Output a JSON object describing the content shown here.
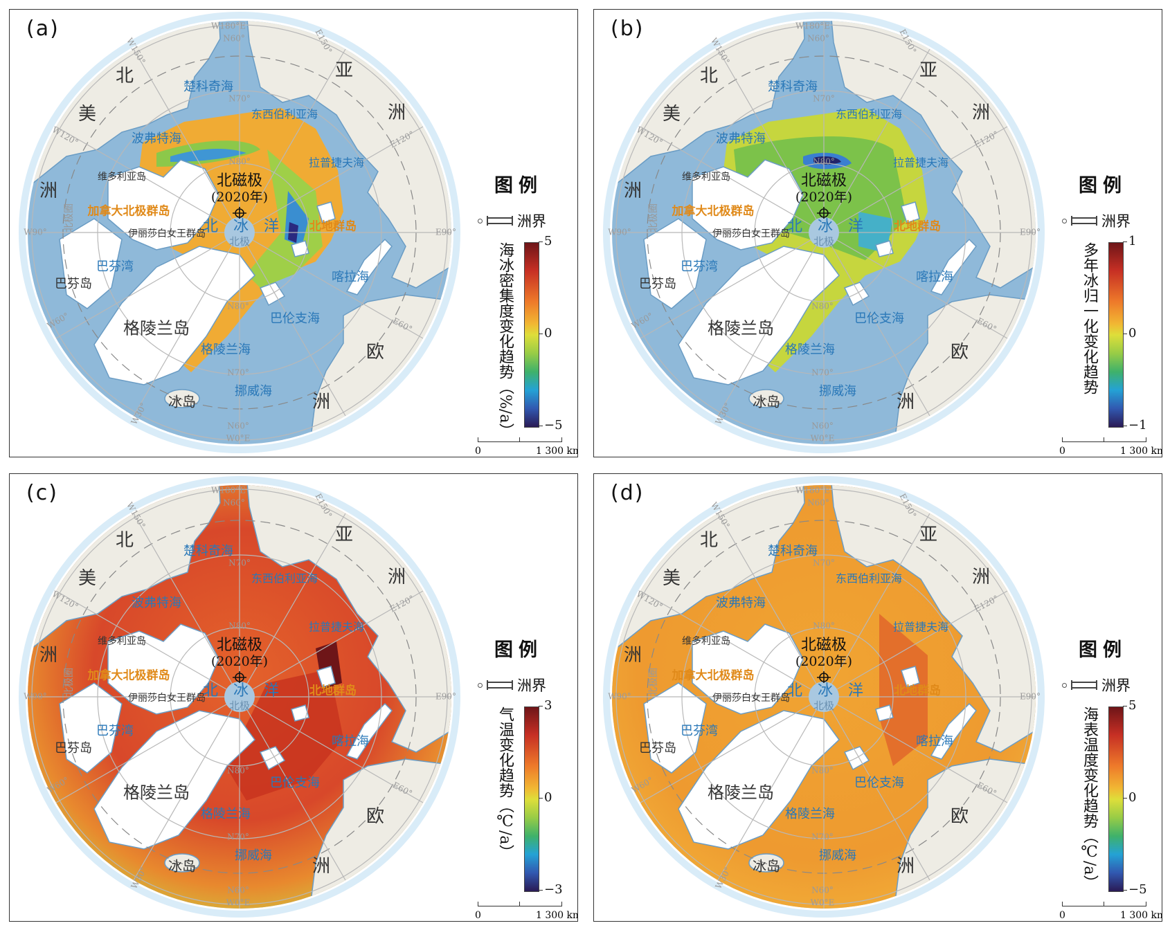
{
  "panels": [
    {
      "label": "(a)",
      "legend_title": "图例",
      "boundary_label": "洲界",
      "colorbar": {
        "title": "海冰密集度变化趋势（%/a）",
        "max": "5",
        "mid": "0",
        "min": "−5"
      },
      "scale": {
        "zero": "0",
        "max": "1 300 km"
      },
      "style": "ice-a"
    },
    {
      "label": "(b)",
      "legend_title": "图例",
      "boundary_label": "洲界",
      "colorbar": {
        "title": "多年冰归一化变化趋势",
        "max": "1",
        "mid": "0",
        "min": "−1"
      },
      "scale": {
        "zero": "0",
        "max": "1 300 km"
      },
      "style": "ice-b"
    },
    {
      "label": "(c)",
      "legend_title": "图例",
      "boundary_label": "洲界",
      "colorbar": {
        "title": "气温变化趋势（℃/a）",
        "max": "3",
        "mid": "0",
        "min": "−3"
      },
      "scale": {
        "zero": "0",
        "max": "1 300 km"
      },
      "style": "air-c"
    },
    {
      "label": "(d)",
      "legend_title": "图例",
      "boundary_label": "洲界",
      "colorbar": {
        "title": "海表温度变化趋势（℃/a）",
        "max": "5",
        "mid": "0",
        "min": "−5"
      },
      "scale": {
        "zero": "0",
        "max": "1 300 km"
      },
      "style": "sst-d"
    }
  ],
  "map_labels": [
    {
      "text": "北",
      "kind": "continent"
    },
    {
      "text": "美",
      "kind": "continent"
    },
    {
      "text": "洲",
      "kind": "continent"
    },
    {
      "text": "亚",
      "kind": "continent"
    },
    {
      "text": "洲",
      "kind": "continent"
    },
    {
      "text": "欧",
      "kind": "continent"
    },
    {
      "text": "洲",
      "kind": "continent"
    },
    {
      "text": "格陵兰岛",
      "kind": "island"
    },
    {
      "text": "冰岛",
      "kind": "island"
    },
    {
      "text": "巴芬岛",
      "kind": "island"
    },
    {
      "text": "维多利亚岛",
      "kind": "island-small"
    },
    {
      "text": "伊丽莎白女王群岛",
      "kind": "island-small"
    },
    {
      "text": "加拿大北极群岛",
      "kind": "archipelago"
    },
    {
      "text": "北地群岛",
      "kind": "archipelago"
    },
    {
      "text": "北　冰　洋",
      "kind": "ocean"
    },
    {
      "text": "北极",
      "kind": "pole"
    },
    {
      "text": "北磁极",
      "kind": "magnetic"
    },
    {
      "text": "(2020年)",
      "kind": "magnetic"
    },
    {
      "text": "楚科奇海",
      "kind": "sea"
    },
    {
      "text": "东西伯利亚海",
      "kind": "sea"
    },
    {
      "text": "波弗特海",
      "kind": "sea"
    },
    {
      "text": "拉普捷夫海",
      "kind": "sea"
    },
    {
      "text": "喀拉海",
      "kind": "sea"
    },
    {
      "text": "巴伦支海",
      "kind": "sea"
    },
    {
      "text": "格陵兰海",
      "kind": "sea"
    },
    {
      "text": "挪威海",
      "kind": "sea"
    },
    {
      "text": "巴芬湾",
      "kind": "sea"
    },
    {
      "text": "北极圈",
      "kind": "grid"
    },
    {
      "text": "W180°E",
      "kind": "grid"
    },
    {
      "text": "N60°",
      "kind": "grid"
    },
    {
      "text": "N70°",
      "kind": "grid"
    },
    {
      "text": "N80°",
      "kind": "grid"
    },
    {
      "text": "N80°",
      "kind": "grid"
    },
    {
      "text": "N70°",
      "kind": "grid"
    },
    {
      "text": "N60°",
      "kind": "grid"
    },
    {
      "text": "W0°E",
      "kind": "grid"
    },
    {
      "text": "E150°",
      "kind": "grid"
    },
    {
      "text": "E120°",
      "kind": "grid"
    },
    {
      "text": "E90°",
      "kind": "grid"
    },
    {
      "text": "E60°",
      "kind": "grid"
    },
    {
      "text": "W30°",
      "kind": "grid"
    },
    {
      "text": "W60°",
      "kind": "grid"
    },
    {
      "text": "W90°",
      "kind": "grid"
    },
    {
      "text": "W120°",
      "kind": "grid"
    },
    {
      "text": "W150°",
      "kind": "grid"
    }
  ],
  "colors": {
    "ocean": "#8fb9d9",
    "land": "#eeece4",
    "ice_land": "#ffffff",
    "graticule": "#b8b8b8",
    "sea_label": "#2a78b8",
    "archipelago_label": "#e08a1a"
  },
  "colormap": [
    "#6e1518",
    "#c62f24",
    "#ee7a2a",
    "#f1b733",
    "#dede3a",
    "#98cc46",
    "#3fb16a",
    "#24a2d5",
    "#3158b0",
    "#2a1a55"
  ]
}
